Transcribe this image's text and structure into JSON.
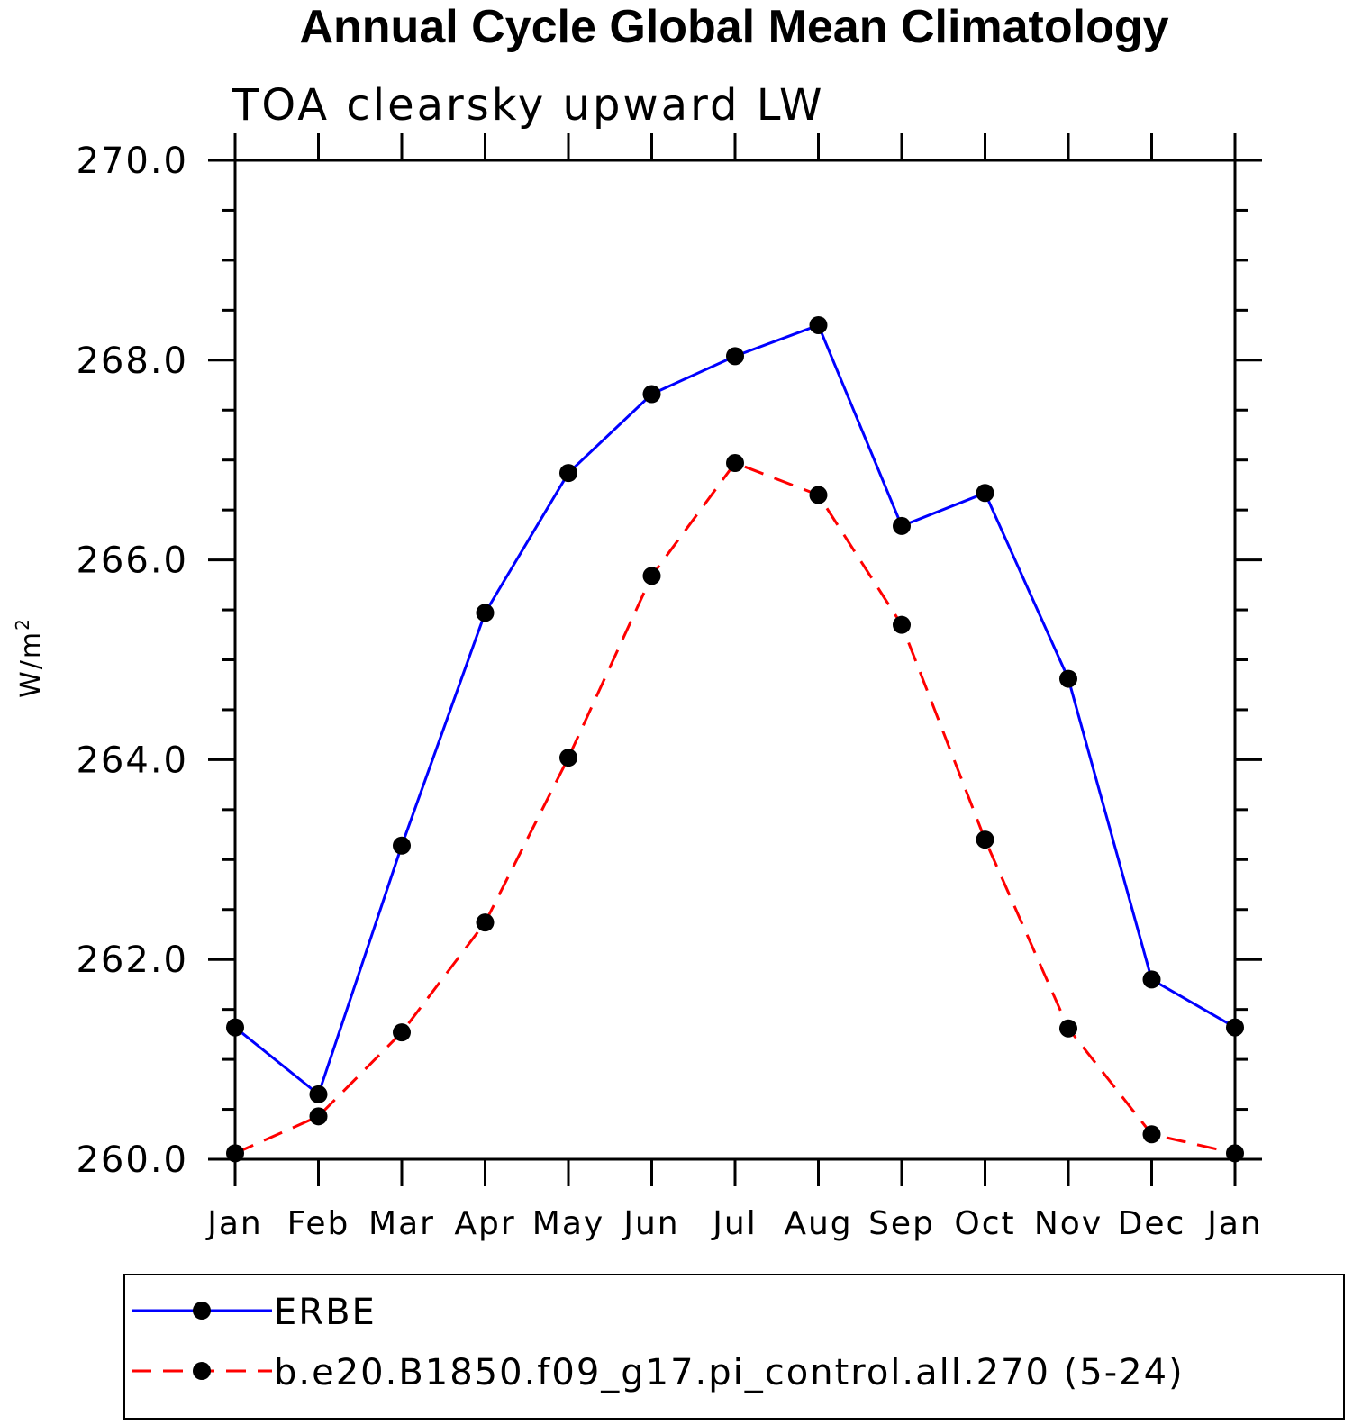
{
  "chart_data": {
    "type": "line",
    "title": "Annual Cycle Global Mean Climatology",
    "subtitle": "TOA clearsky upward LW",
    "ylabel": "W/m",
    "ylabel_superscript": "2",
    "categories": [
      "Jan",
      "Feb",
      "Mar",
      "Apr",
      "May",
      "Jun",
      "Jul",
      "Aug",
      "Sep",
      "Oct",
      "Nov",
      "Dec",
      "Jan"
    ],
    "ylim": [
      260.0,
      270.0
    ],
    "yticks": [
      "260.0",
      "262.0",
      "264.0",
      "266.0",
      "268.0",
      "270.0"
    ],
    "grid": false,
    "legend_position": "bottom",
    "series": [
      {
        "name": "ERBE",
        "color": "#0000ff",
        "dash": "solid",
        "marker": "filled-circle",
        "values": [
          261.32,
          260.65,
          263.14,
          265.47,
          266.87,
          267.66,
          268.04,
          268.35,
          266.34,
          266.67,
          264.81,
          261.8,
          261.32
        ]
      },
      {
        "name": "b.e20.B1850.f09_g17.pi_control.all.270 (5-24)",
        "color": "#ff0000",
        "dash": "dashed",
        "marker": "filled-circle",
        "values": [
          260.06,
          260.43,
          261.27,
          262.37,
          264.02,
          265.84,
          266.97,
          266.65,
          265.35,
          263.2,
          261.31,
          260.25,
          260.06
        ]
      }
    ]
  }
}
